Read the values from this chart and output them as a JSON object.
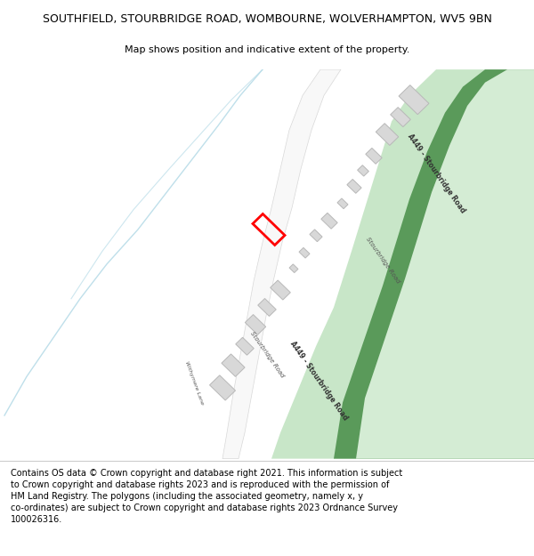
{
  "title_line1": "SOUTHFIELD, STOURBRIDGE ROAD, WOMBOURNE, WOLVERHAMPTON, WV5 9BN",
  "title_line2": "Map shows position and indicative extent of the property.",
  "footer_lines": [
    "Contains OS data © Crown copyright and database right 2021. This information is subject",
    "to Crown copyright and database rights 2023 and is reproduced with the permission of",
    "HM Land Registry. The polygons (including the associated geometry, namely x, y",
    "co-ordinates) are subject to Crown copyright and database rights 2023 Ordnance Survey",
    "100026316."
  ],
  "bg_color": "#ffffff",
  "title_fontsize": 9.0,
  "subtitle_fontsize": 8.0,
  "footer_fontsize": 7.0,
  "a449_outer_color": "#c8e6c8",
  "a449_inner_color": "#5a9a5a",
  "a449_center_color": "#d4ecd4",
  "local_road_color": "#f0f0f0",
  "local_road_edge": "#d8d8d8",
  "building_fill": "#d8d8d8",
  "building_edge": "#b8b8b8",
  "water_color": "#b8dce8",
  "plot_color": "#ff0000",
  "label_road_color": "#333333",
  "label_small_color": "#555555"
}
